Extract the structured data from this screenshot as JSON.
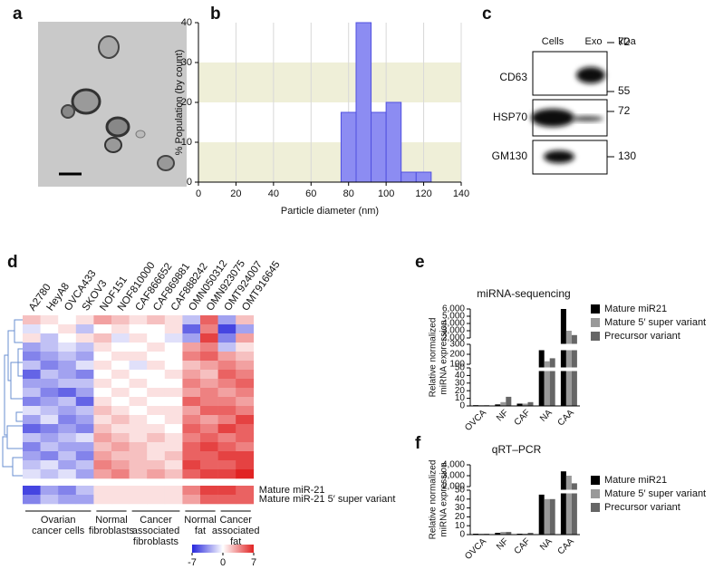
{
  "panel_labels": [
    "a",
    "b",
    "c",
    "d",
    "e",
    "f"
  ],
  "chart_data": [
    {
      "type": "histogram",
      "xlabel": "Particle diameter (nm)",
      "ylabel": "% Population (by count)",
      "bins": [
        76,
        84,
        92,
        100,
        108,
        116,
        124
      ],
      "values": [
        17.5,
        40,
        17.5,
        20,
        2.5,
        2.5
      ],
      "color": "#8c8cf2",
      "xlim": [
        0,
        140
      ],
      "ylim": [
        0,
        40
      ],
      "xticks": [
        0,
        20,
        40,
        60,
        80,
        100,
        120,
        140
      ],
      "yticks": [
        0,
        10,
        20,
        30,
        40
      ],
      "grid": "x",
      "bands": [
        [
          0,
          10
        ],
        [
          20,
          30
        ]
      ],
      "band_color": "#efefd8"
    },
    {
      "type": "broken_bar",
      "title": "miRNA-sequencing",
      "ylabel": [
        "Relative normalized",
        "miRNA expression"
      ],
      "categories": [
        "OVCA",
        "NF",
        "CAF",
        "NA",
        "CAA"
      ],
      "series": [
        {
          "name": "Mature miR21",
          "color": "#000000",
          "values": [
            1,
            2,
            3,
            280,
            6000
          ]
        },
        {
          "name": "Mature 5′ super variant",
          "color": "#999999",
          "values": [
            1,
            5,
            3,
            130,
            3000
          ]
        },
        {
          "name": "Precursor variant",
          "color": "#666666",
          "values": [
            1,
            12,
            5,
            160,
            2400
          ]
        }
      ],
      "y_segments": [
        {
          "ylim": [
            0,
            50
          ],
          "yticks": [
            0,
            10,
            20,
            30,
            40,
            50
          ]
        },
        {
          "ylim": [
            100,
            300
          ],
          "yticks": [
            100,
            200,
            300
          ]
        },
        {
          "ylim": [
            2000,
            6000
          ],
          "yticks": [
            {
              "value": 2000,
              "label": "2,000"
            },
            {
              "value": 3000,
              "label": "3,000"
            },
            {
              "value": 4000,
              "label": "4,000"
            },
            {
              "value": 5000,
              "label": "5,000"
            },
            {
              "value": 6000,
              "label": "6,000"
            }
          ]
        }
      ]
    },
    {
      "type": "broken_bar",
      "title": "qRT–PCR",
      "ylabel": [
        "Relative normalized",
        "miRNA expression"
      ],
      "categories": [
        "OVCA",
        "NF",
        "CAF",
        "NA",
        "CAA"
      ],
      "series": [
        {
          "name": "Mature miR21",
          "color": "#000000",
          "values": [
            1,
            2,
            1,
            45,
            3400
          ]
        },
        {
          "name": "Mature 5′ super variant",
          "color": "#999999",
          "values": [
            1,
            3,
            1,
            40,
            3000
          ]
        },
        {
          "name": "Precursor variant",
          "color": "#666666",
          "values": [
            1,
            3,
            2,
            40,
            2300
          ]
        }
      ],
      "y_segments": [
        {
          "ylim": [
            0,
            50
          ],
          "yticks": [
            0,
            10,
            20,
            30,
            40,
            50
          ]
        },
        {
          "ylim": [
            2000,
            4000
          ],
          "yticks": [
            {
              "value": 2000,
              "label": "2,000"
            },
            {
              "value": 3000,
              "label": "3,000"
            },
            {
              "value": 4000,
              "label": "4,000"
            }
          ]
        }
      ]
    },
    {
      "type": "heatmap",
      "categories": [
        "A2780",
        "HeyA8",
        "OVCA433",
        "SKOV3",
        "NOF151",
        "NOF810000",
        "CAF866652",
        "CAF869881",
        "CAF888242",
        "OMN050312",
        "OMN923075",
        "OMT924007",
        "OMT916645"
      ],
      "rows": [
        [
          2,
          1,
          0,
          1,
          3,
          2,
          1,
          2,
          1,
          -2,
          5,
          -3,
          2
        ],
        [
          -1,
          0,
          1,
          -2,
          0,
          1,
          0,
          0,
          1,
          -5,
          4,
          -6,
          -3
        ],
        [
          1,
          -2,
          0,
          1,
          2,
          -1,
          1,
          0,
          -1,
          -3,
          6,
          -4,
          3
        ],
        [
          -3,
          -2,
          -1,
          -2,
          1,
          0,
          0,
          1,
          0,
          3,
          4,
          -2,
          1
        ],
        [
          -4,
          -3,
          -2,
          -3,
          0,
          1,
          1,
          0,
          0,
          4,
          5,
          3,
          2
        ],
        [
          -2,
          -4,
          -3,
          -1,
          1,
          0,
          -1,
          1,
          0,
          2,
          3,
          4,
          3
        ],
        [
          -5,
          -2,
          -3,
          -4,
          0,
          1,
          0,
          0,
          1,
          3,
          2,
          5,
          4
        ],
        [
          -3,
          -3,
          -2,
          -2,
          1,
          0,
          1,
          0,
          0,
          4,
          3,
          4,
          5
        ],
        [
          -2,
          -4,
          -5,
          -3,
          0,
          1,
          0,
          1,
          1,
          3,
          4,
          3,
          4
        ],
        [
          -4,
          -3,
          -2,
          -5,
          1,
          0,
          1,
          0,
          0,
          5,
          4,
          4,
          3
        ],
        [
          -1,
          -2,
          -3,
          -2,
          2,
          1,
          0,
          1,
          1,
          3,
          5,
          5,
          4
        ],
        [
          -3,
          -1,
          -4,
          -3,
          1,
          2,
          1,
          0,
          1,
          4,
          3,
          4,
          6
        ],
        [
          -5,
          -4,
          -3,
          -4,
          2,
          1,
          1,
          1,
          0,
          5,
          4,
          6,
          5
        ],
        [
          -2,
          -3,
          -2,
          -1,
          3,
          2,
          1,
          2,
          1,
          4,
          5,
          4,
          5
        ],
        [
          -4,
          -2,
          -3,
          -3,
          2,
          3,
          2,
          1,
          1,
          5,
          6,
          5,
          4
        ],
        [
          -3,
          -4,
          -2,
          -4,
          3,
          2,
          2,
          1,
          2,
          5,
          5,
          6,
          6
        ],
        [
          -2,
          -1,
          -3,
          -2,
          4,
          3,
          2,
          2,
          1,
          6,
          5,
          5,
          6
        ],
        [
          -1,
          -2,
          -1,
          -3,
          3,
          4,
          2,
          3,
          2,
          5,
          6,
          6,
          7
        ]
      ],
      "row_labels": [
        "Mature miR-21",
        "Mature miR-21 5′ super variant"
      ],
      "labeled_rows": [
        [
          -6,
          -3,
          -4,
          -2,
          1,
          1,
          1,
          1,
          1,
          4,
          6,
          6,
          5
        ],
        [
          -4,
          -2,
          -3,
          -3,
          1,
          1,
          1,
          1,
          1,
          3,
          5,
          5,
          5
        ]
      ],
      "groups": [
        [
          "Ovarian",
          "cancer cells"
        ],
        [
          "Normal",
          "fibroblasts"
        ],
        [
          "Cancer",
          "associated",
          "fibroblasts"
        ],
        [
          "Normal",
          "fat"
        ],
        [
          "Cancer",
          "associated",
          "fat"
        ]
      ],
      "clim": [
        -7,
        7
      ],
      "cticks": [
        -7,
        0,
        7
      ]
    }
  ],
  "blot": {
    "columns": [
      "Cells",
      "Exo",
      "kDa"
    ],
    "rows": [
      {
        "label": "CD63",
        "markers": [
          72,
          55
        ]
      },
      {
        "label": "HSP70",
        "markers": [
          72
        ]
      },
      {
        "label": "GM130",
        "markers": [
          130
        ]
      }
    ]
  }
}
